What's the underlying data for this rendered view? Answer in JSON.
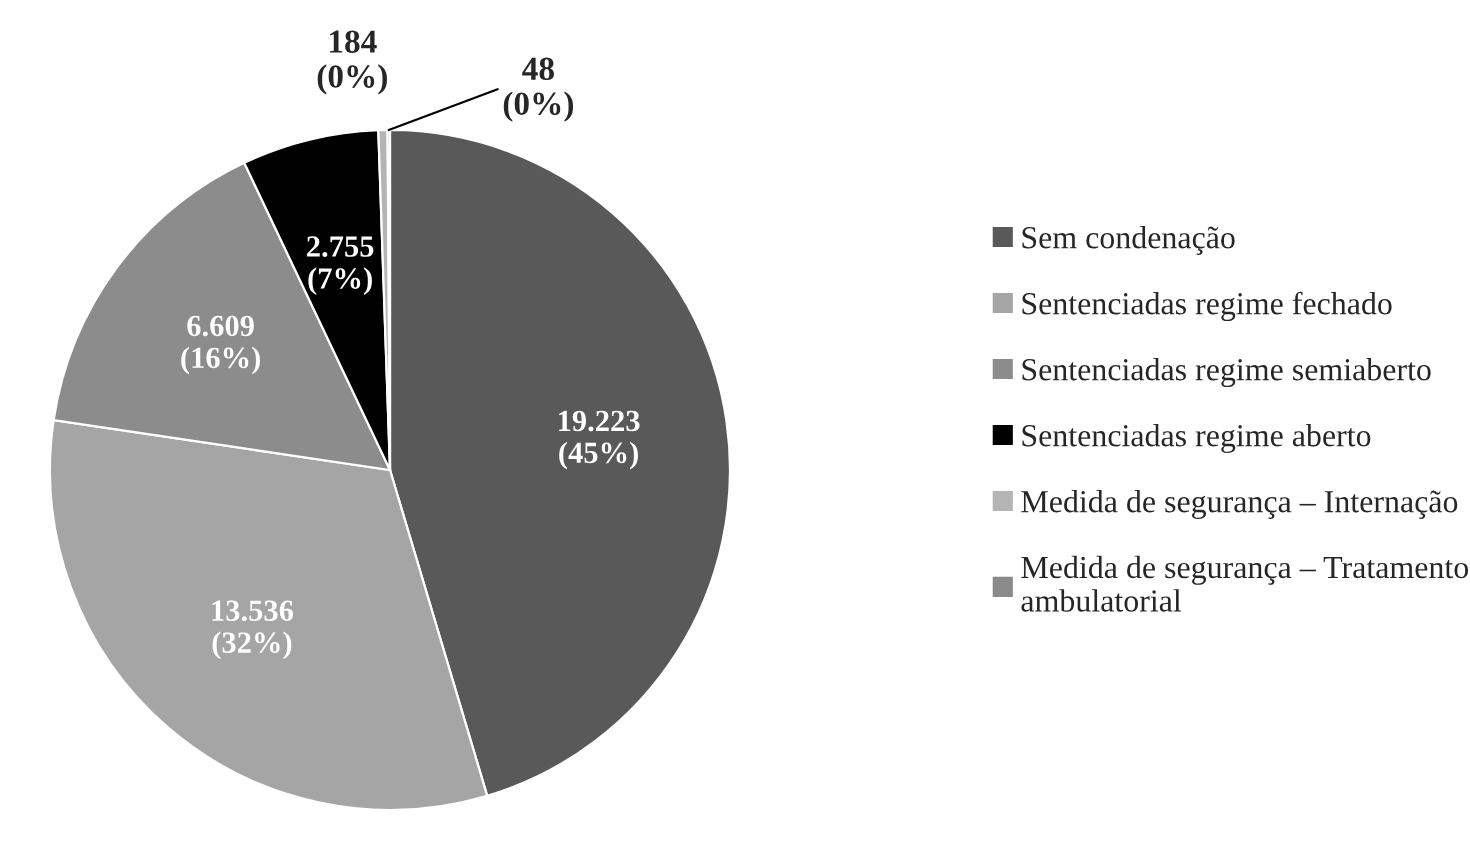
{
  "chart_data": {
    "type": "pie",
    "categories": [
      "Sem condenação",
      "Sentenciadas regime fechado",
      "Sentenciadas regime semiaberto",
      "Sentenciadas regime aberto",
      "Medida de segurança – Internação",
      "Medida de segurança – Tratamento\nambulatorial"
    ],
    "values": [
      19223,
      13536,
      6609,
      2755,
      184,
      48
    ],
    "value_labels": [
      "19.223\n(45%)",
      "13.536\n(32%)",
      "6.609\n(16%)",
      "2.755\n(7%)",
      "184\n(0%)",
      "48\n(0%)"
    ],
    "colors": [
      "#595959",
      "#a5a5a5",
      "#8c8c8c",
      "#000000",
      "#b4b4b4",
      "#8a8a8a"
    ],
    "legend": "right"
  }
}
